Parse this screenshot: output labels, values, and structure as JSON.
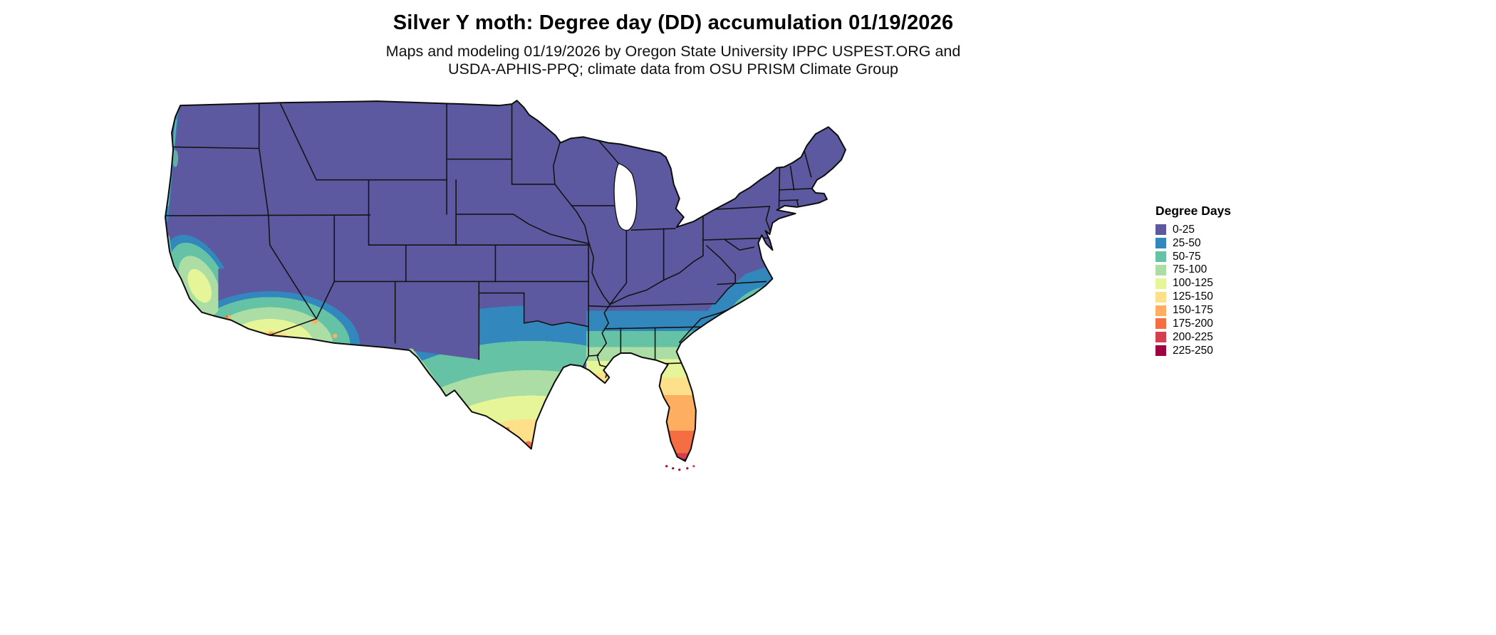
{
  "header": {
    "title": "Silver Y moth: Degree day (DD) accumulation 01/19/2026",
    "subtitle_lines": [
      "Maps and modeling 01/19/2026 by Oregon State University IPPC USPEST.ORG and",
      "USDA-APHIS-PPQ; climate data from OSU PRISM Climate Group"
    ]
  },
  "legend": {
    "title": "Degree Days",
    "items": [
      {
        "range": "0-25",
        "hex": "#5c59a0"
      },
      {
        "range": "25-50",
        "hex": "#3288bd"
      },
      {
        "range": "50-75",
        "hex": "#66c2a5"
      },
      {
        "range": "75-100",
        "hex": "#abdda4"
      },
      {
        "range": "100-125",
        "hex": "#e6f598"
      },
      {
        "range": "125-150",
        "hex": "#fee08b"
      },
      {
        "range": "150-175",
        "hex": "#fdae61"
      },
      {
        "range": "175-200",
        "hex": "#f46d43"
      },
      {
        "range": "200-225",
        "hex": "#d53e4f"
      },
      {
        "range": "225-250",
        "hex": "#9e0142"
      }
    ]
  },
  "map": {
    "border_color": "#141414",
    "water_color": "#ffffff"
  }
}
